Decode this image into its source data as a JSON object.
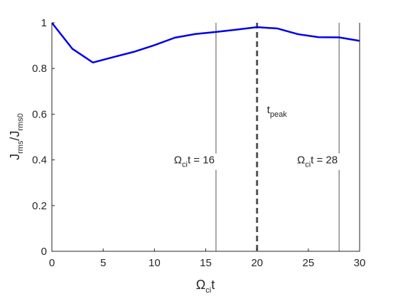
{
  "chart_data": {
    "type": "line",
    "xlabel": {
      "main": "Ω",
      "sub": "ci",
      "tail": "t"
    },
    "ylabel": {
      "p1": "J",
      "s1": "rms",
      "p2": "/J",
      "s2": "rms0"
    },
    "xlim": [
      0,
      30
    ],
    "ylim": [
      0,
      1
    ],
    "xticks": [
      0,
      5,
      10,
      15,
      20,
      25,
      30
    ],
    "yticks": [
      0,
      0.2,
      0.4,
      0.6,
      0.8,
      1
    ],
    "ytick_labels": [
      "0",
      "0.2",
      "0.4",
      "0.6",
      "0.8",
      "1"
    ],
    "grid": false,
    "series": [
      {
        "color": "#0000e6",
        "x": [
          0,
          2,
          4,
          6,
          8,
          10,
          12,
          14,
          16,
          18,
          20,
          22,
          24,
          26,
          28,
          30
        ],
        "y": [
          1.0,
          0.886,
          0.826,
          0.85,
          0.873,
          0.902,
          0.935,
          0.951,
          0.96,
          0.97,
          0.981,
          0.975,
          0.95,
          0.937,
          0.936,
          0.921
        ]
      }
    ],
    "vlines": [
      {
        "x": 16,
        "style": "solid",
        "color": "#555555",
        "label": {
          "main": "Ω",
          "sub": "ci",
          "tail": "t = 16"
        },
        "label_y": 0.4
      },
      {
        "x": 20,
        "style": "dashed",
        "color": "#555555",
        "label": {
          "main": "t",
          "sub": "peak",
          "tail": ""
        },
        "label_y": 0.62
      },
      {
        "x": 28,
        "style": "solid",
        "color": "#555555",
        "label": {
          "main": "Ω",
          "sub": "ci",
          "tail": "t = 28"
        },
        "label_y": 0.4
      }
    ]
  }
}
